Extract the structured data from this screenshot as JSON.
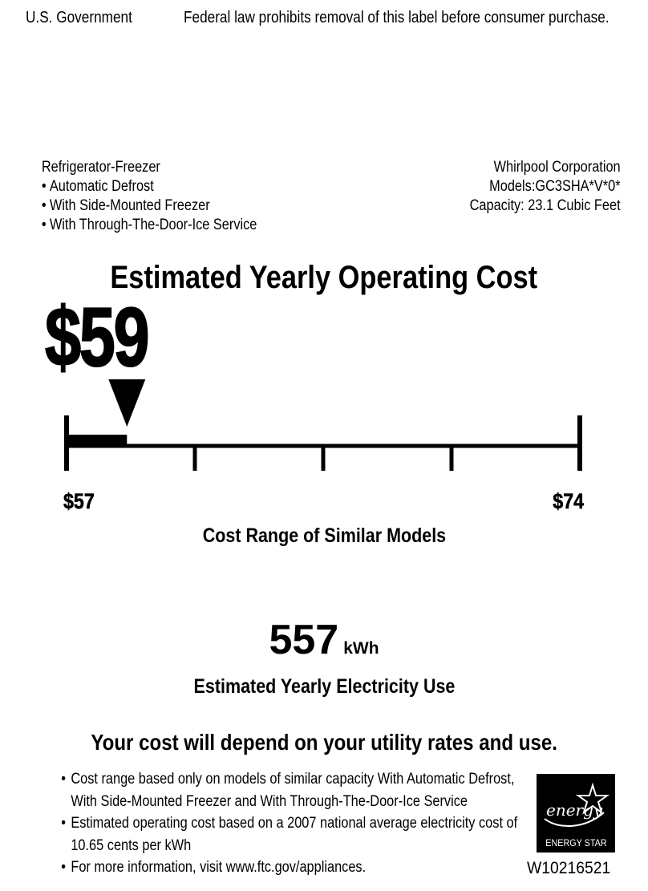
{
  "header": {
    "left": "U.S. Government",
    "right": "Federal law prohibits removal of this label before consumer purchase."
  },
  "product": {
    "type": "Refrigerator-Freezer",
    "features": [
      "Automatic Defrost",
      "With Side-Mounted Freezer",
      "With Through-The-Door-Ice Service"
    ]
  },
  "manufacturer": {
    "name": "Whirlpool Corporation",
    "models": "Models:GC3SHA*V*0*",
    "capacity": "Capacity: 23.1 Cubic Feet"
  },
  "cost": {
    "title": "Estimated Yearly Operating Cost",
    "value": "$59",
    "range_min": "$57",
    "range_max": "$74",
    "range_caption": "Cost Range of Similar Models"
  },
  "chart_data": {
    "type": "range-scale",
    "min": 57,
    "max": 74,
    "value": 59,
    "ticks": 5
  },
  "electricity": {
    "value": "557",
    "unit": "kWh",
    "caption": "Estimated Yearly Electricity Use"
  },
  "disclaimer": "Your cost will depend on your utility rates and use.",
  "notes": [
    [
      "Cost range based only on models of similar capacity With Automatic Defrost,",
      "With Side-Mounted Freezer and With Through-The-Door-Ice Service"
    ],
    [
      "Estimated operating cost based on a 2007 national average electricity cost of",
      "10.65 cents per kWh"
    ],
    [
      "For more information, visit www.ftc.gov/appliances."
    ]
  ],
  "energy_star": {
    "script": "energy",
    "label": "ENERGY STAR"
  },
  "form_number": "W10216521"
}
